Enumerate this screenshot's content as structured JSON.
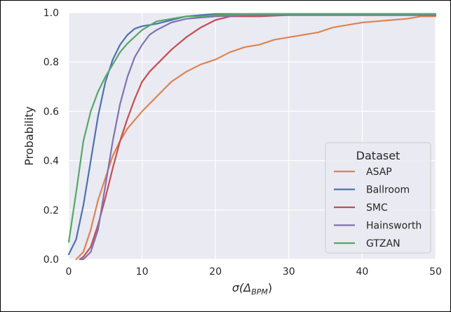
{
  "chart_data": {
    "type": "line",
    "title": "",
    "xlabel": "σ(Δ",
    "xlabel_sub": "BPM",
    "xlabel_close": ")",
    "ylabel": "Probability",
    "xlim": [
      0,
      50
    ],
    "ylim": [
      0,
      1.0
    ],
    "xticks": [
      0,
      10,
      20,
      30,
      40,
      50
    ],
    "yticks": [
      0.0,
      0.2,
      0.4,
      0.6,
      0.8,
      1.0
    ],
    "xtick_labels": [
      "0",
      "10",
      "20",
      "30",
      "40",
      "50"
    ],
    "ytick_labels": [
      "0.0",
      "0.2",
      "0.4",
      "0.6",
      "0.8",
      "1.0"
    ],
    "grid": true,
    "legend": {
      "title": "Dataset",
      "placement": "lower-right"
    },
    "series": [
      {
        "name": "ASAP",
        "color": "#dd8452",
        "points": [
          [
            1,
            0.0
          ],
          [
            2,
            0.03
          ],
          [
            3,
            0.12
          ],
          [
            4,
            0.24
          ],
          [
            5,
            0.33
          ],
          [
            6,
            0.42
          ],
          [
            7,
            0.48
          ],
          [
            8,
            0.53
          ],
          [
            10,
            0.6
          ],
          [
            12,
            0.66
          ],
          [
            14,
            0.72
          ],
          [
            16,
            0.76
          ],
          [
            18,
            0.79
          ],
          [
            20,
            0.81
          ],
          [
            22,
            0.84
          ],
          [
            24,
            0.86
          ],
          [
            26,
            0.87
          ],
          [
            28,
            0.89
          ],
          [
            30,
            0.9
          ],
          [
            32,
            0.91
          ],
          [
            34,
            0.92
          ],
          [
            36,
            0.94
          ],
          [
            38,
            0.95
          ],
          [
            40,
            0.96
          ],
          [
            42,
            0.965
          ],
          [
            44,
            0.97
          ],
          [
            46,
            0.975
          ],
          [
            48,
            0.985
          ],
          [
            50,
            0.985
          ]
        ]
      },
      {
        "name": "Ballroom",
        "color": "#4c72b0",
        "points": [
          [
            0,
            0.02
          ],
          [
            1,
            0.08
          ],
          [
            2,
            0.22
          ],
          [
            3,
            0.4
          ],
          [
            4,
            0.58
          ],
          [
            5,
            0.72
          ],
          [
            6,
            0.81
          ],
          [
            7,
            0.87
          ],
          [
            8,
            0.91
          ],
          [
            9,
            0.935
          ],
          [
            10,
            0.945
          ],
          [
            12,
            0.955
          ],
          [
            14,
            0.97
          ],
          [
            16,
            0.985
          ],
          [
            18,
            0.99
          ],
          [
            20,
            0.995
          ],
          [
            25,
            0.995
          ],
          [
            30,
            0.995
          ],
          [
            40,
            0.995
          ],
          [
            50,
            0.995
          ]
        ]
      },
      {
        "name": "SMC",
        "color": "#c44e52",
        "points": [
          [
            1.5,
            0.0
          ],
          [
            2,
            0.01
          ],
          [
            3,
            0.05
          ],
          [
            4,
            0.14
          ],
          [
            5,
            0.25
          ],
          [
            6,
            0.37
          ],
          [
            7,
            0.48
          ],
          [
            8,
            0.57
          ],
          [
            9,
            0.65
          ],
          [
            10,
            0.72
          ],
          [
            11,
            0.76
          ],
          [
            12,
            0.79
          ],
          [
            14,
            0.85
          ],
          [
            16,
            0.9
          ],
          [
            18,
            0.94
          ],
          [
            20,
            0.97
          ],
          [
            22,
            0.985
          ],
          [
            26,
            0.985
          ],
          [
            30,
            0.99
          ],
          [
            40,
            0.99
          ],
          [
            50,
            0.99
          ]
        ]
      },
      {
        "name": "Hainsworth",
        "color": "#8172b2",
        "points": [
          [
            1.5,
            0.0
          ],
          [
            2,
            0.0
          ],
          [
            3,
            0.03
          ],
          [
            4,
            0.12
          ],
          [
            5,
            0.3
          ],
          [
            6,
            0.48
          ],
          [
            7,
            0.63
          ],
          [
            8,
            0.74
          ],
          [
            9,
            0.82
          ],
          [
            10,
            0.87
          ],
          [
            11,
            0.91
          ],
          [
            12,
            0.93
          ],
          [
            14,
            0.96
          ],
          [
            16,
            0.975
          ],
          [
            18,
            0.98
          ],
          [
            20,
            0.985
          ],
          [
            25,
            0.99
          ],
          [
            30,
            0.99
          ],
          [
            35,
            0.99
          ],
          [
            40,
            0.99
          ],
          [
            45,
            0.99
          ],
          [
            50,
            0.99
          ]
        ]
      },
      {
        "name": "GTZAN",
        "color": "#55a868",
        "points": [
          [
            0,
            0.07
          ],
          [
            1,
            0.27
          ],
          [
            2,
            0.48
          ],
          [
            3,
            0.6
          ],
          [
            4,
            0.68
          ],
          [
            5,
            0.74
          ],
          [
            6,
            0.79
          ],
          [
            7,
            0.84
          ],
          [
            8,
            0.875
          ],
          [
            10,
            0.93
          ],
          [
            12,
            0.965
          ],
          [
            14,
            0.975
          ],
          [
            16,
            0.985
          ],
          [
            18,
            0.985
          ],
          [
            20,
            0.99
          ],
          [
            25,
            0.995
          ],
          [
            30,
            0.995
          ],
          [
            40,
            0.995
          ],
          [
            50,
            0.995
          ]
        ]
      }
    ]
  }
}
